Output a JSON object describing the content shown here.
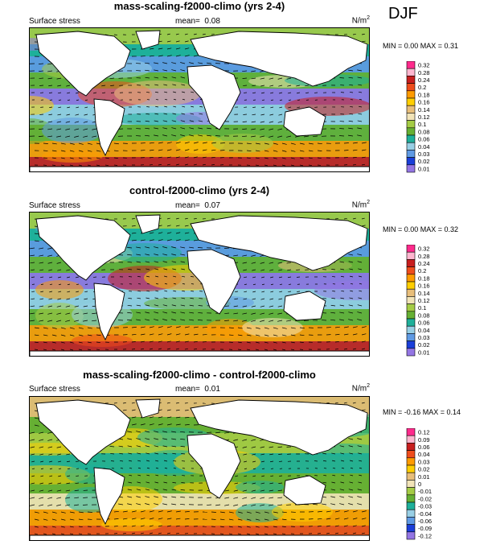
{
  "season": "DJF",
  "panels": [
    {
      "title": "mass-scaling-f2000-climo (yrs 2-4)",
      "variable": "Surface stress",
      "mean_label": "mean=",
      "mean_value": "0.08",
      "units": "N/m",
      "units_exp": "2",
      "minmax": "MIN =  0.00 MAX =  0.31"
    },
    {
      "title": "control-f2000-climo (yrs 2-4)",
      "variable": "Surface stress",
      "mean_label": "mean=",
      "mean_value": "0.07",
      "units": "N/m",
      "units_exp": "2",
      "minmax": "MIN =  0.00 MAX =  0.32"
    },
    {
      "title": "mass-scaling-f2000-climo - control-f2000-climo",
      "variable": "Surface stress",
      "mean_label": "mean=",
      "mean_value": "0.01",
      "units": "N/m",
      "units_exp": "2",
      "minmax": "MIN = -0.16 MAX =  0.14"
    }
  ],
  "chart_data": [
    {
      "type": "heatmap",
      "title": "mass-scaling-f2000-climo (yrs 2-4)",
      "mean": 0.08,
      "min": 0.0,
      "max": 0.31,
      "colorbar_levels": [
        "0.32",
        "0.28",
        "0.24",
        "0.2",
        "0.18",
        "0.16",
        "0.14",
        "0.12",
        "0.1",
        "0.08",
        "0.06",
        "0.04",
        "0.03",
        "0.02",
        "0.01"
      ],
      "colorbar_colors": [
        "#ff2a8c",
        "#ffb6cf",
        "#c81e1e",
        "#ef4d1c",
        "#ff9b00",
        "#ffce00",
        "#e8be7a",
        "#f2e4b8",
        "#a5cc45",
        "#66b033",
        "#1eb09a",
        "#98cfe5",
        "#5f9ae4",
        "#1a3ed9",
        "#9476e4"
      ]
    },
    {
      "type": "heatmap",
      "title": "control-f2000-climo (yrs 2-4)",
      "mean": 0.07,
      "min": 0.0,
      "max": 0.32,
      "colorbar_levels": [
        "0.32",
        "0.28",
        "0.24",
        "0.2",
        "0.18",
        "0.16",
        "0.14",
        "0.12",
        "0.1",
        "0.08",
        "0.06",
        "0.04",
        "0.03",
        "0.02",
        "0.01"
      ],
      "colorbar_colors": [
        "#ff2a8c",
        "#ffb6cf",
        "#c81e1e",
        "#ef4d1c",
        "#ff9b00",
        "#ffce00",
        "#e8be7a",
        "#f2e4b8",
        "#a5cc45",
        "#66b033",
        "#1eb09a",
        "#98cfe5",
        "#5f9ae4",
        "#1a3ed9",
        "#9476e4"
      ]
    },
    {
      "type": "heatmap",
      "title": "mass-scaling-f2000-climo - control-f2000-climo",
      "mean": 0.01,
      "min": -0.16,
      "max": 0.14,
      "colorbar_levels": [
        "0.12",
        "0.09",
        "0.06",
        "0.04",
        "0.03",
        "0.02",
        "0.01",
        "0",
        "-0.01",
        "-0.02",
        "-0.03",
        "-0.04",
        "-0.06",
        "-0.09",
        "-0.12"
      ],
      "colorbar_colors": [
        "#ff2a8c",
        "#ffb6cf",
        "#c81e1e",
        "#ef4d1c",
        "#ff9b00",
        "#ffce00",
        "#e8be7a",
        "#f2e4b8",
        "#a5cc45",
        "#66b033",
        "#1eb09a",
        "#98cfe5",
        "#5f9ae4",
        "#1a3ed9",
        "#9476e4"
      ]
    }
  ]
}
